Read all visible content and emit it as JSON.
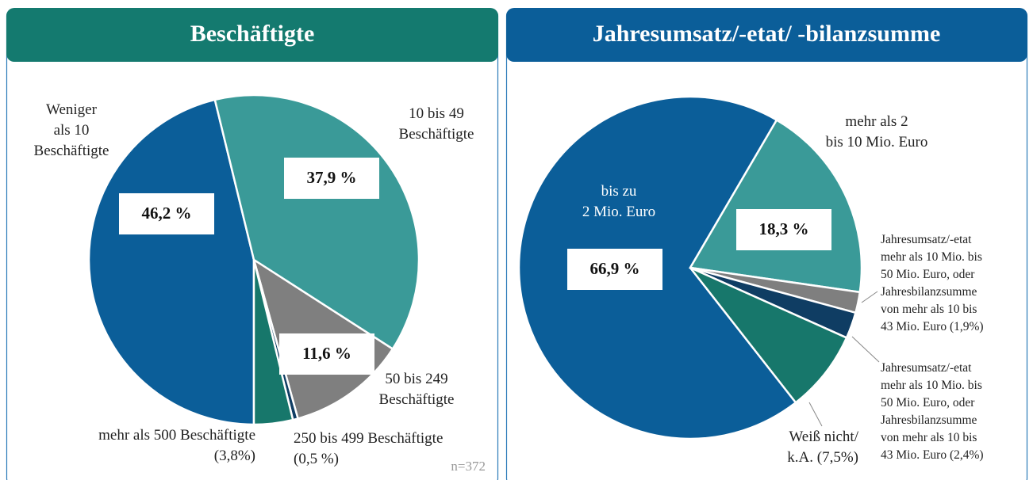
{
  "chart_data": [
    {
      "type": "pie",
      "title": "Beschäftigte",
      "categories": [
        "Weniger\nals 10\nBeschäftigte",
        "10 bis 49\nBeschäftigte",
        "50 bis 249\nBeschäftigte",
        "250 bis 499 Beschäftigte\n(0,5 %)",
        "mehr als 500 Beschäftigte\n(3,8%)"
      ],
      "values": [
        46.2,
        37.9,
        11.6,
        0.5,
        3.8
      ],
      "value_labels": [
        "46,2 %",
        "37,9 %",
        "11,6 %",
        null,
        null
      ],
      "colors": [
        "#0b5e99",
        "#3a9a98",
        "#7f7f7f",
        "#0f3d63",
        "#17776b"
      ],
      "note": "n=372"
    },
    {
      "type": "pie",
      "title": "Jahresumsatz/-etat/ -bilanzsumme",
      "categories": [
        "bis zu\n2 Mio. Euro",
        "mehr als 2\nbis 10 Mio. Euro",
        "Jahresumsatz/-etat\nmehr als 10 Mio. bis\n50 Mio. Euro, oder\nJahresbilanzsumme\nvon mehr als 10 bis\n43 Mio. Euro (1,9%)",
        "Jahresumsatz/-etat\nmehr als 10 Mio. bis\n50 Mio. Euro, oder\nJahresbilanzsumme\nvon mehr als 10 bis\n43 Mio. Euro (2,4%)",
        "Weiß nicht/\nk.A. (7,5%)"
      ],
      "values": [
        66.9,
        18.3,
        1.9,
        2.4,
        7.5
      ],
      "value_labels": [
        "66,9 %",
        "18,3 %",
        null,
        null,
        null
      ],
      "colors": [
        "#0b5e99",
        "#3a9a98",
        "#7f7f7f",
        "#0f3d63",
        "#17776b"
      ]
    }
  ]
}
